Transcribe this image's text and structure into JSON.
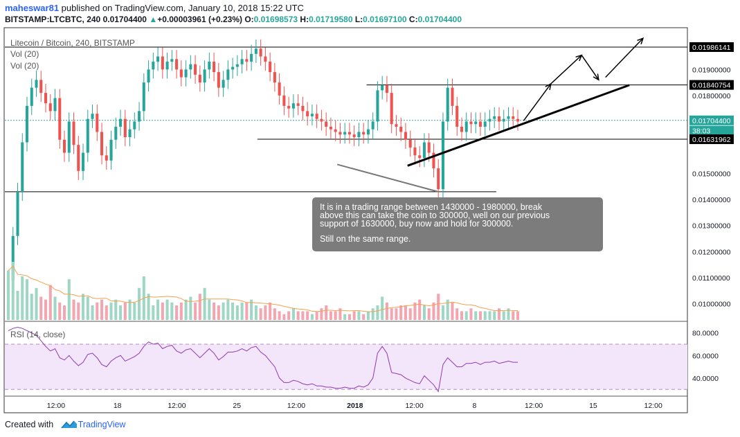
{
  "header": {
    "author": "maheswar81",
    "published_text": " published on TradingView.com, January 10, 2018 15:22 UTC",
    "symbol": "BITSTAMP:LTCBTC, 240",
    "last": "0.01704400",
    "change_arrow": "▲",
    "change": "+0.00003961 (+0.23%)",
    "o_label": "O:",
    "o_value": "0.01698573",
    "h_label": "H:",
    "h_value": "0.01719580",
    "l_label": "L:",
    "l_value": "0.01697100",
    "c_label": "C:",
    "c_value": "0.01704400"
  },
  "chart_title": "Litecoin / Bitcoin, 240, BITSTAMP",
  "vol_label_1": "Vol (20)",
  "vol_label_2": "Vol (20)",
  "rsi_label": "RSI (14, close)",
  "note": {
    "line1": "It is in a trading range between 1430000 - 1980000,  break\nabove this can take the coin to 300000, well on our previous\nsupport of 1630000,  buy now and hold for 300000.",
    "line2": "Still on the same range."
  },
  "footer": {
    "created_with": "Created with",
    "brand": "TradingView"
  },
  "colors": {
    "up": "#26a69a",
    "down": "#ef5350",
    "vol_up": "#9fd7c4",
    "vol_down": "#f4a6b0",
    "vol_ma": "#f5a04d",
    "rsi": "#8e3ab3",
    "rsi_band": "#f3e5fa",
    "price_tag": "#26a69a"
  },
  "chart_data": {
    "type": "candlestick",
    "y_axis_ticks": [
      "0.01900000",
      "0.01800000",
      "0.01700000",
      "0.01500000",
      "0.01400000",
      "0.01300000",
      "0.01200000",
      "0.01100000",
      "0.01000000"
    ],
    "y_tick_values": [
      0.019,
      0.018,
      0.017,
      0.015,
      0.014,
      0.013,
      0.012,
      0.011,
      0.01
    ],
    "ylim": [
      0.00932,
      0.02002
    ],
    "price_tags": [
      {
        "label": "0.01986141",
        "value": 0.01986141,
        "style": "black"
      },
      {
        "label": "0.01840754",
        "value": 0.01840754,
        "style": "black"
      },
      {
        "label": "0.01704400",
        "value": 0.017044,
        "style": "green"
      },
      {
        "label": "38:03",
        "value": 0.01665,
        "style": "green"
      },
      {
        "label": "0.01631962",
        "value": 0.01631962,
        "style": "black"
      }
    ],
    "rsi_ticks": [
      "80.0000",
      "60.0000",
      "40.0000"
    ],
    "rsi_tick_values": [
      80,
      60,
      40
    ],
    "rsi_ylim": [
      24,
      89
    ],
    "rsi_bands": [
      70,
      30
    ],
    "x_ticks": [
      "12:00",
      "18",
      "12:00",
      "25",
      "12:00",
      "2018",
      "12:00",
      "8",
      "12:00",
      "15",
      "12:00"
    ],
    "x_tick_fractions": [
      0.075,
      0.165,
      0.252,
      0.34,
      0.427,
      0.513,
      0.6,
      0.688,
      0.775,
      0.862,
      0.95
    ],
    "horizontal_levels": [
      {
        "value": 0.01986141,
        "from": 0.0,
        "to": 1.0
      },
      {
        "value": 0.01840754,
        "from": 0.53,
        "to": 1.0
      },
      {
        "value": 0.01631962,
        "from": 0.37,
        "to": 1.0
      },
      {
        "value": 0.0143,
        "from": 0.0,
        "to": 0.72
      }
    ],
    "close_series": [
      0.0109,
      0.0126,
      0.0143,
      0.0162,
      0.0176,
      0.0183,
      0.0186,
      0.0181,
      0.0177,
      0.0174,
      0.0179,
      0.0163,
      0.0158,
      0.017,
      0.0161,
      0.0151,
      0.0158,
      0.0171,
      0.0173,
      0.0166,
      0.0157,
      0.0155,
      0.0163,
      0.0168,
      0.0171,
      0.0164,
      0.0167,
      0.017,
      0.0174,
      0.0185,
      0.019,
      0.0193,
      0.0195,
      0.019,
      0.0193,
      0.0194,
      0.019,
      0.0187,
      0.019,
      0.0192,
      0.0188,
      0.0185,
      0.019,
      0.0193,
      0.0189,
      0.0183,
      0.0186,
      0.019,
      0.0191,
      0.0192,
      0.0194,
      0.0193,
      0.0196,
      0.0198,
      0.0195,
      0.0193,
      0.0189,
      0.0185,
      0.018,
      0.0176,
      0.0175,
      0.0177,
      0.0176,
      0.0174,
      0.0172,
      0.0173,
      0.0171,
      0.017,
      0.0168,
      0.0167,
      0.0166,
      0.0165,
      0.0166,
      0.0165,
      0.0164,
      0.0166,
      0.0165,
      0.0167,
      0.017,
      0.0182,
      0.0184,
      0.0181,
      0.0169,
      0.0168,
      0.0166,
      0.0163,
      0.016,
      0.0157,
      0.0156,
      0.0162,
      0.0158,
      0.0152,
      0.0144,
      0.017,
      0.0183,
      0.0176,
      0.0168,
      0.0166,
      0.017,
      0.0169,
      0.017,
      0.0168,
      0.017,
      0.0171,
      0.0172,
      0.017,
      0.0171,
      0.0172,
      0.0171,
      0.017
    ],
    "rsi_series": [
      82,
      84,
      85,
      84,
      82,
      80,
      78,
      73,
      68,
      64,
      66,
      58,
      56,
      60,
      55,
      51,
      54,
      61,
      62,
      58,
      52,
      50,
      55,
      58,
      60,
      55,
      57,
      59,
      62,
      68,
      72,
      70,
      71,
      66,
      68,
      69,
      64,
      62,
      65,
      66,
      62,
      58,
      62,
      66,
      62,
      56,
      59,
      63,
      63,
      64,
      66,
      64,
      67,
      68,
      63,
      60,
      55,
      50,
      40,
      36,
      36,
      38,
      37,
      35,
      34,
      35,
      33,
      33,
      32,
      32,
      31,
      31,
      32,
      31,
      31,
      33,
      32,
      34,
      40,
      62,
      68,
      62,
      45,
      44,
      43,
      40,
      38,
      36,
      35,
      42,
      38,
      34,
      28,
      52,
      58,
      54,
      50,
      50,
      53,
      53,
      54,
      52,
      54,
      54,
      55,
      53,
      54,
      55,
      54,
      54
    ],
    "volume_series": [
      34,
      40,
      20,
      30,
      28,
      18,
      22,
      16,
      14,
      24,
      16,
      12,
      10,
      28,
      14,
      12,
      18,
      16,
      10,
      12,
      14,
      10,
      12,
      14,
      10,
      12,
      14,
      12,
      22,
      30,
      18,
      10,
      14,
      12,
      14,
      12,
      10,
      12,
      14,
      16,
      12,
      18,
      22,
      14,
      12,
      10,
      12,
      14,
      12,
      10,
      12,
      12,
      14,
      10,
      8,
      10,
      12,
      8,
      6,
      4,
      6,
      8,
      6,
      6,
      6,
      4,
      6,
      8,
      10,
      6,
      6,
      8,
      4,
      4,
      6,
      6,
      4,
      6,
      8,
      10,
      16,
      12,
      8,
      8,
      10,
      10,
      8,
      12,
      14,
      10,
      8,
      12,
      18,
      10,
      14,
      12,
      8,
      6,
      6,
      8,
      6,
      6,
      6,
      6,
      6,
      8,
      6,
      8,
      6,
      6
    ],
    "annotations": {
      "support_trendline": {
        "from": [
          0.59,
          0.0153
        ],
        "to": [
          0.915,
          0.0184
        ]
      },
      "arrows": [
        {
          "from": [
            0.76,
            0.01703
          ],
          "to": [
            0.8,
            0.01845
          ]
        },
        {
          "from": [
            0.8,
            0.01845
          ],
          "to": [
            0.845,
            0.01955
          ]
        },
        {
          "from": [
            0.845,
            0.01955
          ],
          "to": [
            0.87,
            0.0186
          ]
        },
        {
          "from": [
            0.88,
            0.0187
          ],
          "to": [
            0.935,
            0.0202
          ]
        }
      ],
      "callout_pointer": {
        "from": [
          0.487,
          0.01535
        ],
        "to": [
          0.635,
          0.0143
        ]
      }
    }
  }
}
